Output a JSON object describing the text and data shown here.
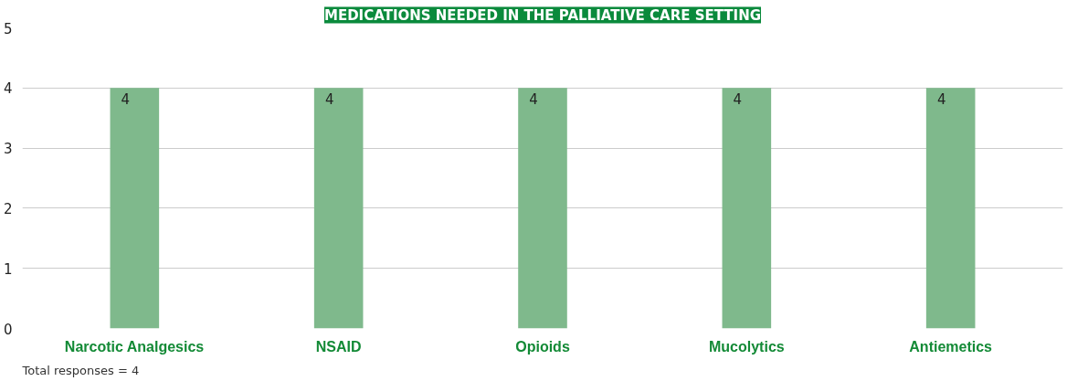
{
  "chart_data": {
    "type": "bar",
    "title": "MEDICATIONS NEEDED IN THE PALLIATIVE CARE SETTING",
    "categories": [
      "Narcotic Analgesics",
      "NSAID",
      "Opioids",
      "Mucolytics",
      "Antiemetics"
    ],
    "values": [
      4,
      4,
      4,
      4,
      4
    ],
    "color": "#7fb98c",
    "ylim": [
      0,
      5
    ],
    "yticks": [
      0,
      1,
      2,
      3,
      4,
      5
    ],
    "grid": "y",
    "data_labels": true,
    "annotations": [
      "Total responses = 4"
    ]
  }
}
